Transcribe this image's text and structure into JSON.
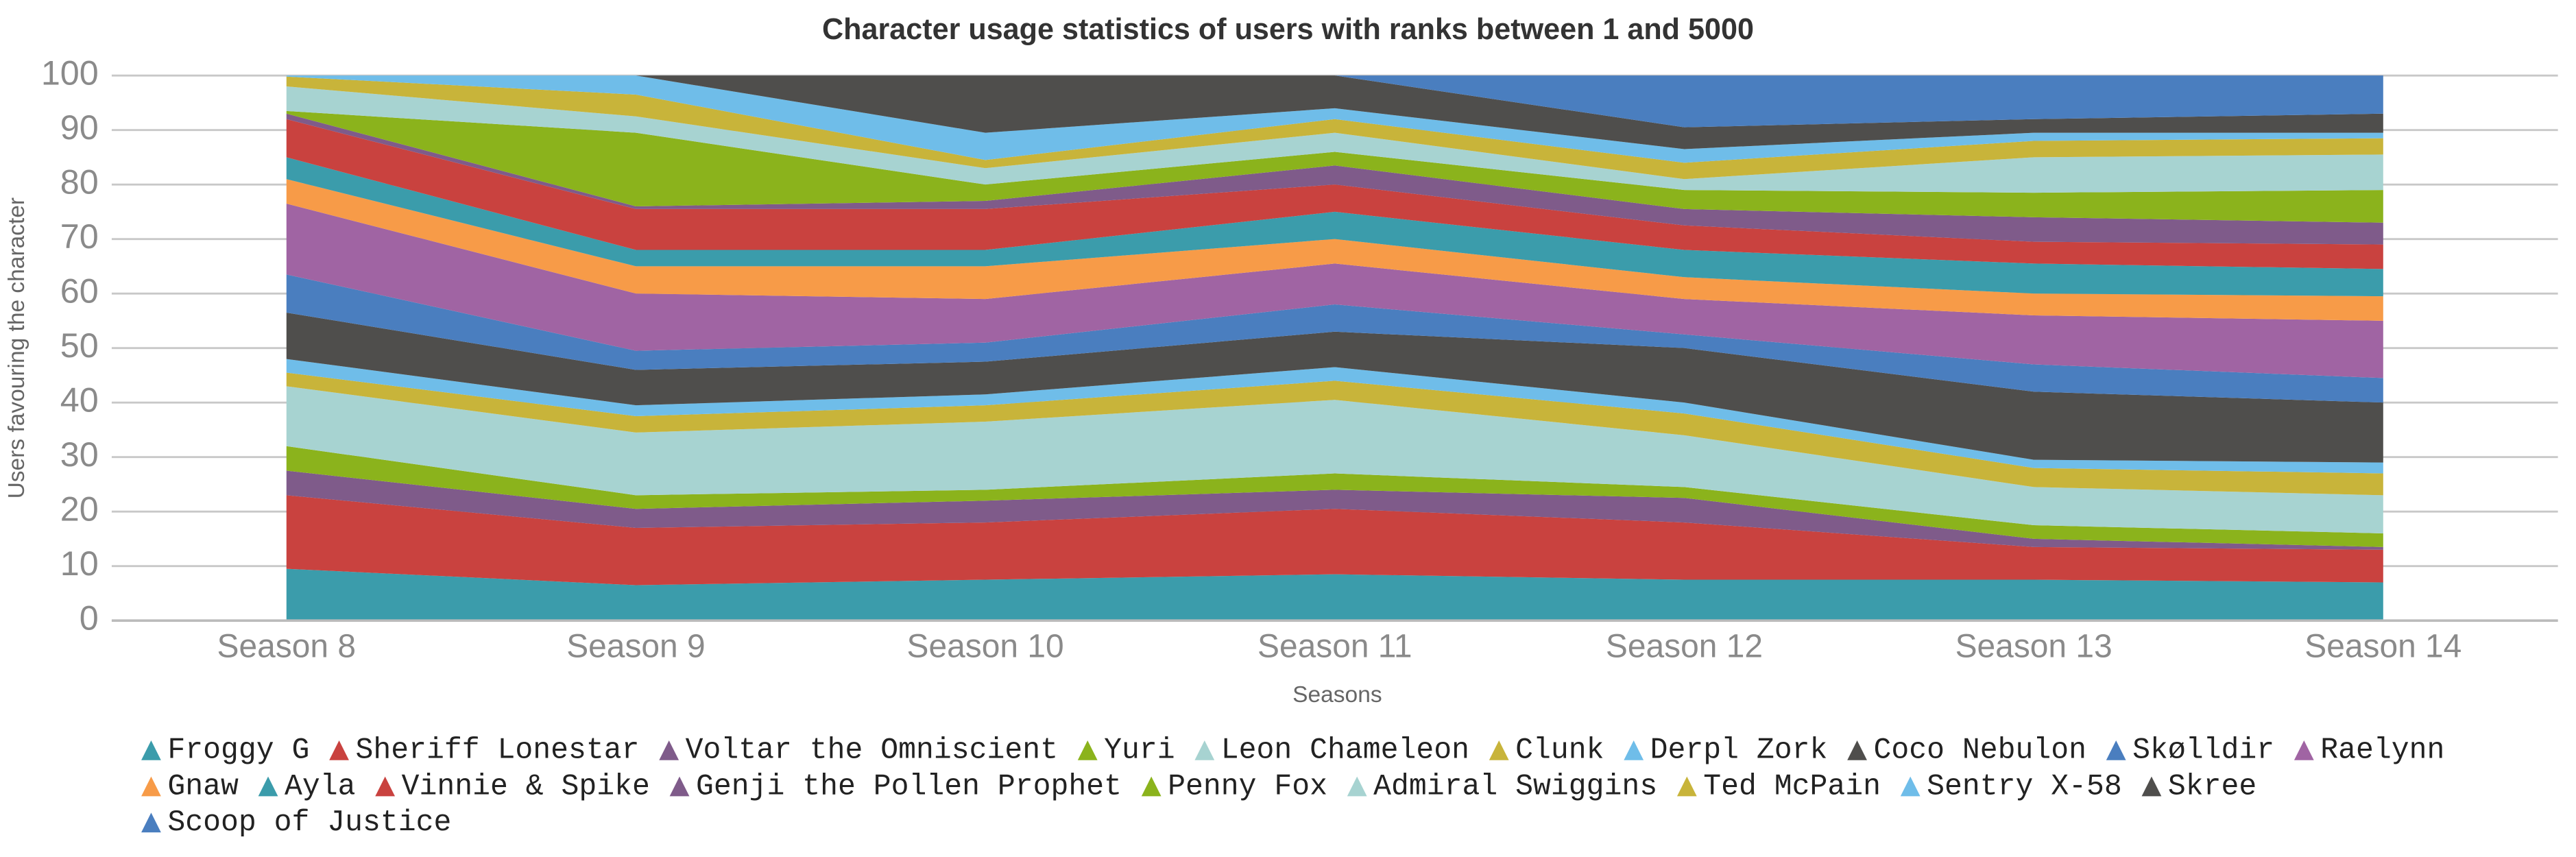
{
  "chart_data": {
    "type": "stacked_area",
    "title": "Character usage statistics of users with ranks between 1 and 5000",
    "x_label": "Seasons",
    "y_label": "Users favouring the character",
    "categories": [
      "Season 8",
      "Season 9",
      "Season 10",
      "Season 11",
      "Season 12",
      "Season 13",
      "Season 14"
    ],
    "ylim": [
      0,
      100
    ],
    "yticks": [
      0,
      10,
      20,
      30,
      40,
      50,
      60,
      70,
      80,
      90,
      100
    ],
    "grid": true,
    "legend": "bottom",
    "series": [
      {
        "name": "Froggy G",
        "color": "#3b9cab",
        "values": [
          9.5,
          6.5,
          7.5,
          8.5,
          7.5,
          7.5,
          7
        ]
      },
      {
        "name": "Sheriff Lonestar",
        "color": "#c9423f",
        "values": [
          13.5,
          10.5,
          10.5,
          12,
          10.5,
          6,
          6
        ]
      },
      {
        "name": "Voltar the Omniscient",
        "color": "#7f5b8a",
        "values": [
          4.5,
          3.5,
          4,
          3.5,
          4.5,
          1.5,
          0.5
        ]
      },
      {
        "name": "Yuri",
        "color": "#8bb31c",
        "values": [
          4.5,
          2.5,
          2,
          3,
          2,
          2.5,
          2.5
        ]
      },
      {
        "name": "Leon Chameleon",
        "color": "#a7d3d1",
        "values": [
          11,
          11.5,
          12.5,
          13.5,
          9.5,
          7,
          7
        ]
      },
      {
        "name": "Clunk",
        "color": "#c8b43a",
        "values": [
          2.5,
          3,
          3,
          3.5,
          4,
          3.5,
          4
        ]
      },
      {
        "name": "Derpl Zork",
        "color": "#6fbde9",
        "values": [
          2.5,
          2,
          2,
          2.5,
          2,
          1.5,
          2
        ]
      },
      {
        "name": "Coco Nebulon",
        "color": "#4f4e4c",
        "values": [
          8.5,
          6.5,
          6,
          6.5,
          10,
          12.5,
          11
        ]
      },
      {
        "name": "Skølldir",
        "color": "#4a7ebf",
        "values": [
          7,
          3.5,
          3.5,
          5,
          2.5,
          5,
          4.5
        ]
      },
      {
        "name": "Raelynn",
        "color": "#a064a3",
        "values": [
          13,
          10.5,
          8,
          7.5,
          6.5,
          9,
          10.5
        ]
      },
      {
        "name": "Gnaw",
        "color": "#f79b48",
        "values": [
          4.5,
          5,
          6,
          4.5,
          4,
          4,
          4.5
        ]
      },
      {
        "name": "Ayla",
        "color": "#3b9cab",
        "values": [
          4,
          3,
          3,
          5,
          5,
          5.5,
          5
        ]
      },
      {
        "name": "Vinnie & Spike",
        "color": "#c9423f",
        "values": [
          7,
          7.5,
          7.5,
          5,
          4.5,
          4,
          4.5
        ]
      },
      {
        "name": "Genji the Pollen Prophet",
        "color": "#7f5b8a",
        "values": [
          1,
          0.5,
          1.5,
          3.5,
          3,
          4.5,
          4
        ]
      },
      {
        "name": "Penny Fox",
        "color": "#8bb31c",
        "values": [
          0.5,
          13.5,
          3,
          2.5,
          3.5,
          4.5,
          6
        ]
      },
      {
        "name": "Admiral Swiggins",
        "color": "#a7d3d1",
        "values": [
          4.5,
          3,
          3,
          3.5,
          2,
          6.5,
          6.5
        ]
      },
      {
        "name": "Ted McPain",
        "color": "#c8b43a",
        "values": [
          1.8,
          4,
          1.5,
          2.5,
          3,
          3,
          3
        ]
      },
      {
        "name": "Sentry X-58",
        "color": "#6fbde9",
        "values": [
          0.2,
          3.5,
          5,
          2,
          2.5,
          1.5,
          1
        ]
      },
      {
        "name": "Skree",
        "color": "#4f4e4c",
        "values": [
          0,
          0,
          10.5,
          6,
          4,
          2.5,
          3.5
        ]
      },
      {
        "name": "Scoop of Justice",
        "color": "#4a7ebf",
        "values": [
          0,
          0,
          0,
          0,
          9.5,
          8,
          7
        ]
      }
    ]
  }
}
